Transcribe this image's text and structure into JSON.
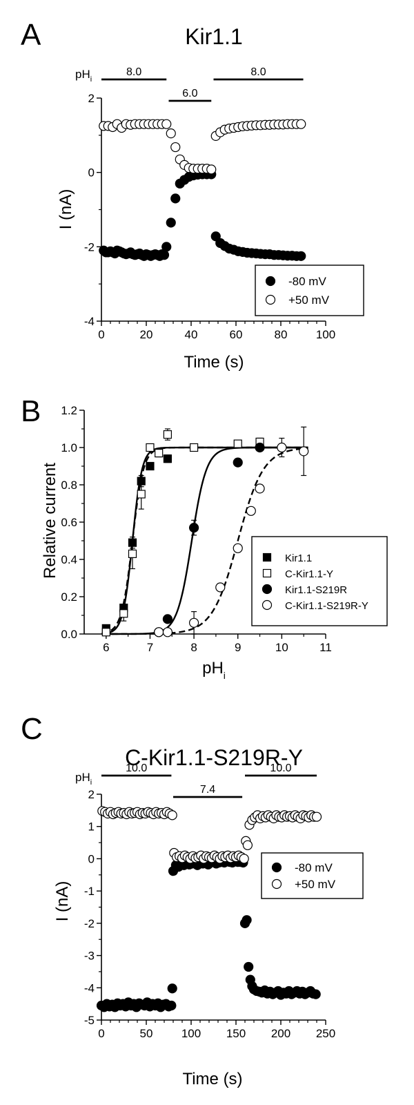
{
  "panels": [
    {
      "letter": "A",
      "title": "Kir1.1",
      "ph_label": "pH",
      "ph_sub": "i",
      "ph_bars": [
        {
          "label": "8.0",
          "from": 0,
          "to": 29
        },
        {
          "label": "6.0",
          "from": 30,
          "to": 49
        },
        {
          "label": "8.0",
          "from": 50,
          "to": 90
        }
      ]
    },
    {
      "letter": "B",
      "title": "",
      "xlabel_main": "pH",
      "xlabel_sub": "i"
    },
    {
      "letter": "C",
      "title": "C-Kir1.1-S219R-Y",
      "ph_label": "pH",
      "ph_sub": "i",
      "ph_bars": [
        {
          "label": "10.0",
          "from": 0,
          "to": 78
        },
        {
          "label": "7.4",
          "from": 80,
          "to": 157
        },
        {
          "label": "10.0",
          "from": 160,
          "to": 240
        }
      ]
    }
  ],
  "chart_data": [
    {
      "type": "scatter",
      "title": "Kir1.1",
      "xlabel": "Time (s)",
      "ylabel": "I (nA)",
      "xlim": [
        0,
        100
      ],
      "ylim": [
        -4,
        2
      ],
      "xticks": [
        0,
        20,
        40,
        60,
        80,
        100
      ],
      "yticks": [
        -4,
        -2,
        0,
        2
      ],
      "legend_position": "bottom-right",
      "series": [
        {
          "name": "-80 mV",
          "marker": "filled-circle",
          "x": [
            1,
            2,
            3,
            4,
            5,
            6,
            7,
            8,
            9,
            10,
            11,
            12,
            13,
            14,
            15,
            16,
            17,
            18,
            19,
            20,
            21,
            22,
            23,
            24,
            25,
            26,
            27,
            28,
            29,
            31,
            33,
            35,
            37,
            39,
            41,
            43,
            45,
            47,
            49,
            51,
            53,
            55,
            57,
            59,
            61,
            63,
            65,
            67,
            69,
            71,
            73,
            75,
            77,
            79,
            81,
            83,
            85,
            87,
            89
          ],
          "y": [
            -2.1,
            -2.15,
            -2.15,
            -2.12,
            -2.15,
            -2.18,
            -2.1,
            -2.12,
            -2.15,
            -2.18,
            -2.2,
            -2.18,
            -2.15,
            -2.2,
            -2.22,
            -2.2,
            -2.18,
            -2.22,
            -2.25,
            -2.2,
            -2.22,
            -2.25,
            -2.22,
            -2.2,
            -2.22,
            -2.25,
            -2.2,
            -2.22,
            -2.0,
            -1.35,
            -0.7,
            -0.3,
            -0.2,
            -0.12,
            -0.08,
            -0.06,
            -0.05,
            -0.05,
            -0.05,
            -1.72,
            -1.9,
            -1.98,
            -2.05,
            -2.08,
            -2.12,
            -2.14,
            -2.16,
            -2.17,
            -2.18,
            -2.19,
            -2.2,
            -2.2,
            -2.22,
            -2.22,
            -2.23,
            -2.24,
            -2.24,
            -2.25,
            -2.25
          ]
        },
        {
          "name": "+50 mV",
          "marker": "open-circle",
          "x": [
            1,
            3,
            5,
            7,
            9,
            11,
            13,
            15,
            17,
            19,
            21,
            23,
            25,
            27,
            29,
            31,
            33,
            35,
            37,
            39,
            41,
            43,
            45,
            47,
            49,
            51,
            53,
            55,
            57,
            59,
            61,
            63,
            65,
            67,
            69,
            71,
            73,
            75,
            77,
            79,
            81,
            83,
            85,
            87,
            89
          ],
          "y": [
            1.25,
            1.25,
            1.22,
            1.3,
            1.2,
            1.3,
            1.28,
            1.3,
            1.3,
            1.3,
            1.3,
            1.3,
            1.3,
            1.3,
            1.3,
            1.05,
            0.68,
            0.35,
            0.2,
            0.12,
            0.1,
            0.1,
            0.1,
            0.1,
            0.08,
            0.98,
            1.08,
            1.15,
            1.18,
            1.2,
            1.22,
            1.24,
            1.25,
            1.26,
            1.27,
            1.27,
            1.28,
            1.28,
            1.29,
            1.29,
            1.29,
            1.3,
            1.3,
            1.3,
            1.3
          ]
        }
      ]
    },
    {
      "type": "scatter",
      "title": "",
      "xlabel": "pH",
      "ylabel": "Relative current",
      "xlim": [
        5.5,
        11
      ],
      "ylim": [
        0,
        1.2
      ],
      "xticks": [
        6,
        7,
        8,
        9,
        10,
        11
      ],
      "yticks": [
        0.0,
        0.2,
        0.4,
        0.6,
        0.8,
        1.0,
        1.2
      ],
      "legend_position": "bottom-right",
      "series": [
        {
          "name": "Kir1.1",
          "marker": "filled-square",
          "x": [
            6.0,
            6.4,
            6.6,
            6.8,
            7.0,
            7.4
          ],
          "y": [
            0.03,
            0.14,
            0.49,
            0.82,
            0.9,
            0.94
          ],
          "err": [
            0.01,
            0.02,
            0.03,
            0.03,
            0.02,
            0.02
          ],
          "fit": {
            "pKa": 6.6,
            "n": 4.0,
            "style": "solid"
          }
        },
        {
          "name": "C-Kir1.1-Y",
          "marker": "open-square",
          "x": [
            6.0,
            6.4,
            6.6,
            6.8,
            7.0,
            7.2,
            7.4,
            8.0,
            9.0,
            9.5
          ],
          "y": [
            0.01,
            0.11,
            0.43,
            0.75,
            1.0,
            0.97,
            1.07,
            1.0,
            1.02,
            1.03
          ],
          "err": [
            0.01,
            0.04,
            0.08,
            0.08,
            0.02,
            0.02,
            0.03,
            0.01,
            0.02,
            0.02
          ],
          "fit": {
            "pKa": 6.6,
            "n": 3.5,
            "style": "dashed"
          }
        },
        {
          "name": "Kir1.1-S219R",
          "marker": "filled-circle",
          "x": [
            7.2,
            7.4,
            8.0,
            9.0,
            9.5
          ],
          "y": [
            0.01,
            0.08,
            0.57,
            0.92,
            1.0
          ],
          "err": [
            0.01,
            0.01,
            0.04,
            0.02,
            0.02
          ],
          "fit": {
            "pKa": 7.95,
            "n": 2.6,
            "style": "solid"
          }
        },
        {
          "name": "C-Kir1.1-S219R-Y",
          "marker": "open-circle",
          "x": [
            7.2,
            7.4,
            8.0,
            8.6,
            9.0,
            9.3,
            9.5,
            10.0,
            10.5
          ],
          "y": [
            0.01,
            0.01,
            0.06,
            0.25,
            0.46,
            0.66,
            0.78,
            1.0,
            0.98
          ],
          "err": [
            0.005,
            0.01,
            0.06,
            0.02,
            0.02,
            0.02,
            0.02,
            0.05,
            0.13
          ],
          "fit": {
            "pKa": 9.0,
            "n": 1.5,
            "style": "dashed"
          }
        }
      ]
    },
    {
      "type": "scatter",
      "title": "C-Kir1.1-S219R-Y",
      "xlabel": "Time (s)",
      "ylabel": "I (nA)",
      "xlim": [
        0,
        250
      ],
      "ylim": [
        -5,
        2
      ],
      "xticks": [
        0,
        50,
        100,
        150,
        200,
        250
      ],
      "yticks": [
        -5,
        -4,
        -3,
        -2,
        -1,
        0,
        1,
        2
      ],
      "legend_position": "right",
      "series": [
        {
          "name": "-80 mV",
          "marker": "filled-circle",
          "x": [
            0,
            3,
            6,
            9,
            12,
            15,
            18,
            21,
            24,
            27,
            30,
            33,
            36,
            39,
            42,
            45,
            48,
            51,
            54,
            57,
            60,
            63,
            66,
            69,
            72,
            75,
            78,
            79,
            80,
            83,
            86,
            89,
            92,
            95,
            98,
            101,
            104,
            107,
            110,
            113,
            116,
            119,
            122,
            125,
            128,
            131,
            134,
            137,
            140,
            143,
            146,
            149,
            152,
            155,
            158,
            160,
            162,
            164,
            166,
            168,
            170,
            173,
            176,
            179,
            182,
            185,
            188,
            191,
            194,
            197,
            200,
            203,
            206,
            209,
            212,
            215,
            218,
            221,
            224,
            227,
            230,
            233,
            236,
            239
          ],
          "y": [
            -4.55,
            -4.6,
            -4.5,
            -4.58,
            -4.52,
            -4.6,
            -4.48,
            -4.55,
            -4.5,
            -4.58,
            -4.45,
            -4.55,
            -4.5,
            -4.6,
            -4.48,
            -4.52,
            -4.55,
            -4.45,
            -4.58,
            -4.5,
            -4.55,
            -4.48,
            -4.6,
            -4.52,
            -4.5,
            -4.58,
            -4.55,
            -4.02,
            -0.38,
            -0.2,
            -0.25,
            -0.15,
            -0.2,
            -0.12,
            -0.18,
            -0.15,
            -0.1,
            -0.2,
            -0.12,
            -0.15,
            -0.1,
            -0.18,
            -0.12,
            -0.1,
            -0.15,
            -0.12,
            -0.1,
            -0.12,
            -0.08,
            -0.1,
            -0.12,
            -0.08,
            -0.1,
            -0.1,
            -0.12,
            -2.0,
            -1.9,
            -3.35,
            -3.75,
            -3.95,
            -4.05,
            -4.1,
            -4.12,
            -4.15,
            -4.08,
            -4.18,
            -4.12,
            -4.2,
            -4.15,
            -4.1,
            -4.22,
            -4.15,
            -4.18,
            -4.1,
            -4.2,
            -4.15,
            -4.1,
            -4.18,
            -4.12,
            -4.2,
            -4.15,
            -4.1,
            -4.18,
            -4.2
          ]
        },
        {
          "name": "+50 mV",
          "marker": "open-circle",
          "x": [
            1,
            4,
            7,
            10,
            13,
            16,
            19,
            22,
            25,
            28,
            31,
            34,
            37,
            40,
            43,
            46,
            49,
            52,
            55,
            58,
            61,
            64,
            67,
            70,
            73,
            76,
            79,
            81,
            84,
            87,
            90,
            93,
            96,
            99,
            102,
            105,
            108,
            111,
            114,
            117,
            120,
            123,
            126,
            129,
            132,
            135,
            138,
            141,
            144,
            147,
            150,
            153,
            156,
            159,
            161,
            163,
            165,
            168,
            171,
            174,
            177,
            180,
            183,
            186,
            189,
            192,
            195,
            198,
            201,
            204,
            207,
            210,
            213,
            216,
            219,
            222,
            225,
            228,
            231,
            234,
            237,
            240
          ],
          "y": [
            1.48,
            1.45,
            1.4,
            1.45,
            1.38,
            1.42,
            1.45,
            1.4,
            1.42,
            1.38,
            1.45,
            1.4,
            1.42,
            1.45,
            1.38,
            1.42,
            1.4,
            1.45,
            1.42,
            1.38,
            1.45,
            1.4,
            1.42,
            1.38,
            1.45,
            1.4,
            1.35,
            0.18,
            0.05,
            0.08,
            0.02,
            0.1,
            0.05,
            0.0,
            0.08,
            0.02,
            0.05,
            0.1,
            0.0,
            0.08,
            0.05,
            0.02,
            0.1,
            0.05,
            0.0,
            0.08,
            0.05,
            0.1,
            0.02,
            0.08,
            0.05,
            0.1,
            0.05,
            0.0,
            0.55,
            0.42,
            1.05,
            1.2,
            1.28,
            1.35,
            1.25,
            1.32,
            1.28,
            1.35,
            1.3,
            1.25,
            1.35,
            1.3,
            1.28,
            1.35,
            1.3,
            1.32,
            1.28,
            1.35,
            1.3,
            1.25,
            1.35,
            1.32,
            1.28,
            1.35,
            1.3,
            1.3
          ]
        }
      ]
    }
  ]
}
